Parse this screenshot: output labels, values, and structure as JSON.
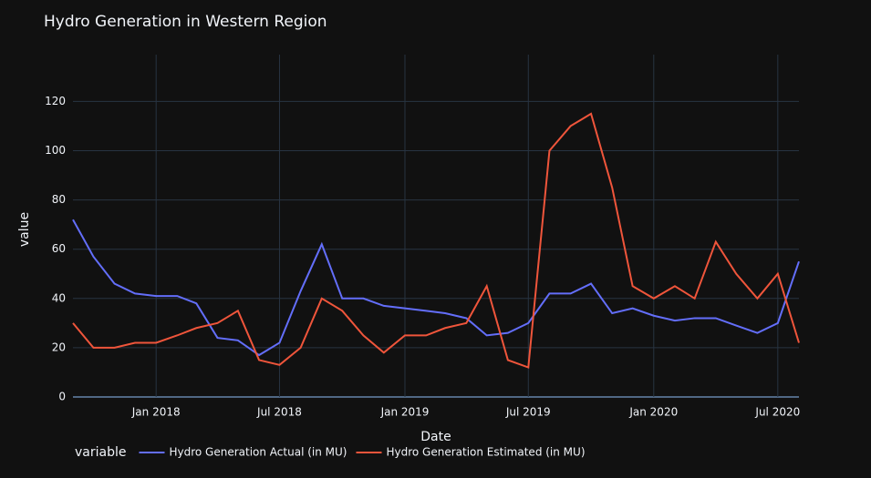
{
  "chart_data": {
    "type": "line",
    "title": "Hydro Generation in Western Region",
    "x_label": "Date",
    "y_label": "value",
    "legend_title": "variable",
    "legend_position": "bottom",
    "grid": true,
    "x": [
      "2017-09",
      "2017-10",
      "2017-11",
      "2017-12",
      "2018-01",
      "2018-02",
      "2018-03",
      "2018-04",
      "2018-05",
      "2018-06",
      "2018-07",
      "2018-08",
      "2018-09",
      "2018-10",
      "2018-11",
      "2018-12",
      "2019-01",
      "2019-02",
      "2019-03",
      "2019-04",
      "2019-05",
      "2019-06",
      "2019-07",
      "2019-08",
      "2019-09",
      "2019-10",
      "2019-11",
      "2019-12",
      "2020-01",
      "2020-02",
      "2020-03",
      "2020-04",
      "2020-05",
      "2020-06",
      "2020-07",
      "2020-08"
    ],
    "series": [
      {
        "name": "Hydro Generation Actual (in MU)",
        "color": "#636efa",
        "values": [
          72,
          57,
          46,
          42,
          41,
          41,
          38,
          24,
          23,
          17,
          22,
          43,
          62,
          40,
          40,
          37,
          36,
          35,
          34,
          32,
          25,
          26,
          30,
          42,
          42,
          46,
          34,
          36,
          33,
          31,
          32,
          32,
          29,
          26,
          30,
          55
        ]
      },
      {
        "name": "Hydro Generation Estimated (in MU)",
        "color": "#ef553b",
        "values": [
          30,
          20,
          20,
          22,
          22,
          25,
          28,
          30,
          35,
          15,
          13,
          20,
          40,
          35,
          25,
          18,
          25,
          25,
          28,
          30,
          45,
          15,
          12,
          100,
          110,
          115,
          85,
          45,
          40,
          45,
          40,
          63,
          50,
          40,
          50,
          22
        ]
      }
    ],
    "xlim": [
      "2017-09",
      "2020-08"
    ],
    "xticks": [
      {
        "value": "2018-01",
        "label": "Jan 2018"
      },
      {
        "value": "2018-07",
        "label": "Jul 2018"
      },
      {
        "value": "2019-01",
        "label": "Jan 2019"
      },
      {
        "value": "2019-07",
        "label": "Jul 2019"
      },
      {
        "value": "2020-01",
        "label": "Jan 2020"
      },
      {
        "value": "2020-07",
        "label": "Jul 2020"
      }
    ],
    "ylim": [
      0,
      139
    ],
    "yticks": [
      0,
      20,
      40,
      60,
      80,
      100,
      120
    ]
  }
}
